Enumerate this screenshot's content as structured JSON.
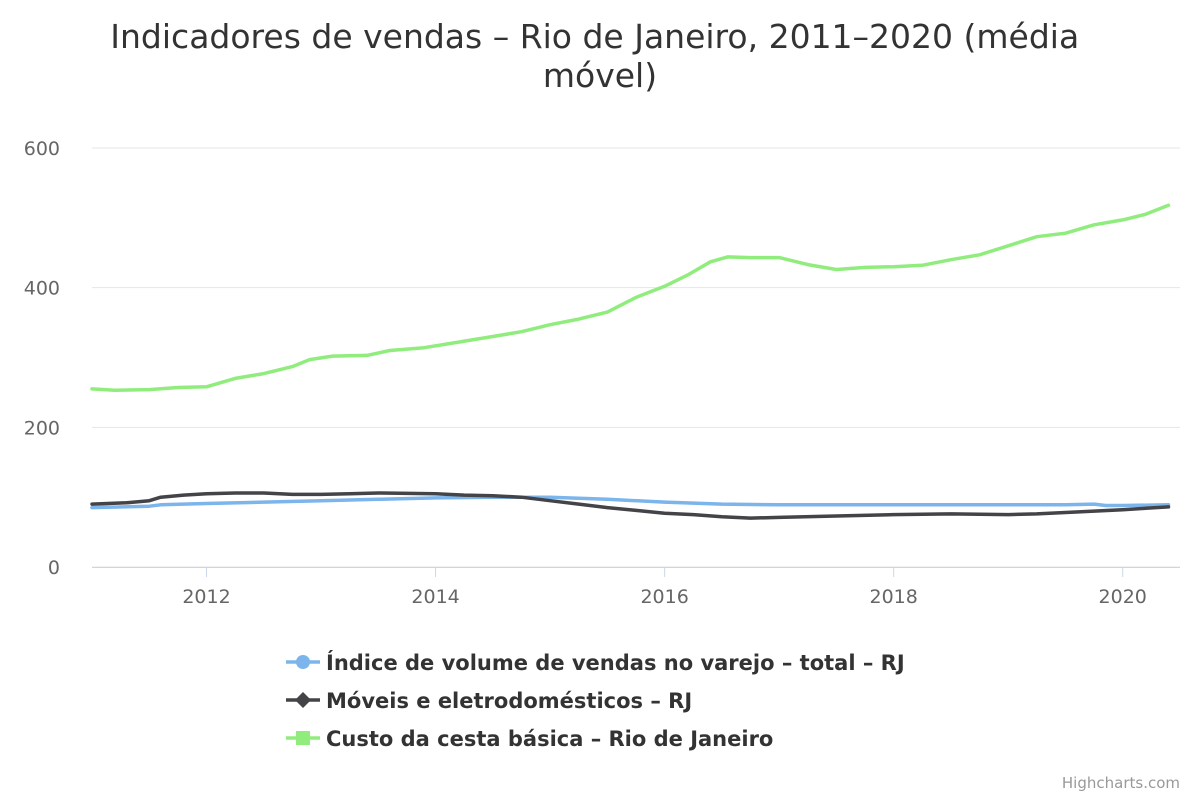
{
  "chart_data": {
    "type": "line",
    "title": "Indicadores de vendas – Rio de Janeiro, 2011–2020 (média móvel)",
    "title_lines": [
      "Indicadores de vendas – Rio de Janeiro, 2011–2020 (média",
      "móvel)"
    ],
    "xlabel": "",
    "ylabel": "",
    "xlim": [
      2011.0,
      2020.5
    ],
    "ylim": [
      0,
      600
    ],
    "x_ticks": [
      2012,
      2014,
      2016,
      2018,
      2020
    ],
    "y_ticks": [
      0,
      200,
      400,
      600
    ],
    "grid": "horizontal",
    "legend_position": "bottom-center",
    "credits": "Highcharts.com",
    "series": [
      {
        "name": "Índice de volume de vendas no varejo – total – RJ",
        "color": "#7cb5ec",
        "marker": "circle",
        "points": [
          [
            2011.0,
            85
          ],
          [
            2011.5,
            87
          ],
          [
            2011.6,
            89
          ],
          [
            2012.0,
            91
          ],
          [
            2012.5,
            93
          ],
          [
            2013.0,
            95
          ],
          [
            2013.5,
            97
          ],
          [
            2014.0,
            99
          ],
          [
            2014.5,
            100
          ],
          [
            2015.0,
            100
          ],
          [
            2015.5,
            97
          ],
          [
            2016.0,
            93
          ],
          [
            2016.5,
            90
          ],
          [
            2017.0,
            89
          ],
          [
            2017.5,
            89
          ],
          [
            2018.0,
            89
          ],
          [
            2018.5,
            89
          ],
          [
            2019.0,
            89
          ],
          [
            2019.5,
            89
          ],
          [
            2019.75,
            90
          ],
          [
            2019.85,
            88
          ],
          [
            2020.0,
            88
          ],
          [
            2020.4,
            89
          ]
        ]
      },
      {
        "name": "Móveis e eletrodomésticos – RJ",
        "color": "#434348",
        "marker": "diamond",
        "points": [
          [
            2011.0,
            90
          ],
          [
            2011.3,
            92
          ],
          [
            2011.5,
            95
          ],
          [
            2011.6,
            100
          ],
          [
            2011.8,
            103
          ],
          [
            2012.0,
            105
          ],
          [
            2012.25,
            106
          ],
          [
            2012.5,
            106
          ],
          [
            2012.75,
            104
          ],
          [
            2013.0,
            104
          ],
          [
            2013.25,
            105
          ],
          [
            2013.5,
            106
          ],
          [
            2014.0,
            105
          ],
          [
            2014.25,
            103
          ],
          [
            2014.5,
            102
          ],
          [
            2014.75,
            100
          ],
          [
            2015.0,
            95
          ],
          [
            2015.25,
            90
          ],
          [
            2015.5,
            85
          ],
          [
            2015.75,
            81
          ],
          [
            2016.0,
            77
          ],
          [
            2016.25,
            75
          ],
          [
            2016.5,
            72
          ],
          [
            2016.75,
            70
          ],
          [
            2017.0,
            71
          ],
          [
            2017.5,
            73
          ],
          [
            2018.0,
            75
          ],
          [
            2018.5,
            76
          ],
          [
            2019.0,
            75
          ],
          [
            2019.25,
            76
          ],
          [
            2019.5,
            78
          ],
          [
            2019.75,
            80
          ],
          [
            2020.0,
            82
          ],
          [
            2020.2,
            84
          ],
          [
            2020.4,
            86
          ]
        ]
      },
      {
        "name": "Custo da cesta básica – Rio de Janeiro",
        "color": "#90ed7d",
        "marker": "square",
        "points": [
          [
            2011.0,
            255
          ],
          [
            2011.2,
            253
          ],
          [
            2011.5,
            254
          ],
          [
            2011.75,
            257
          ],
          [
            2012.0,
            258
          ],
          [
            2012.25,
            270
          ],
          [
            2012.5,
            277
          ],
          [
            2012.75,
            287
          ],
          [
            2012.9,
            297
          ],
          [
            2013.1,
            302
          ],
          [
            2013.4,
            303
          ],
          [
            2013.6,
            310
          ],
          [
            2013.9,
            314
          ],
          [
            2014.2,
            322
          ],
          [
            2014.5,
            330
          ],
          [
            2014.75,
            337
          ],
          [
            2015.0,
            347
          ],
          [
            2015.25,
            355
          ],
          [
            2015.5,
            365
          ],
          [
            2015.75,
            386
          ],
          [
            2016.0,
            402
          ],
          [
            2016.2,
            418
          ],
          [
            2016.4,
            437
          ],
          [
            2016.55,
            444
          ],
          [
            2016.75,
            443
          ],
          [
            2017.0,
            443
          ],
          [
            2017.25,
            433
          ],
          [
            2017.5,
            426
          ],
          [
            2017.75,
            429
          ],
          [
            2018.0,
            430
          ],
          [
            2018.25,
            432
          ],
          [
            2018.5,
            440
          ],
          [
            2018.75,
            447
          ],
          [
            2019.0,
            460
          ],
          [
            2019.25,
            473
          ],
          [
            2019.5,
            478
          ],
          [
            2019.75,
            490
          ],
          [
            2020.0,
            497
          ],
          [
            2020.2,
            505
          ],
          [
            2020.4,
            518
          ]
        ]
      }
    ]
  }
}
